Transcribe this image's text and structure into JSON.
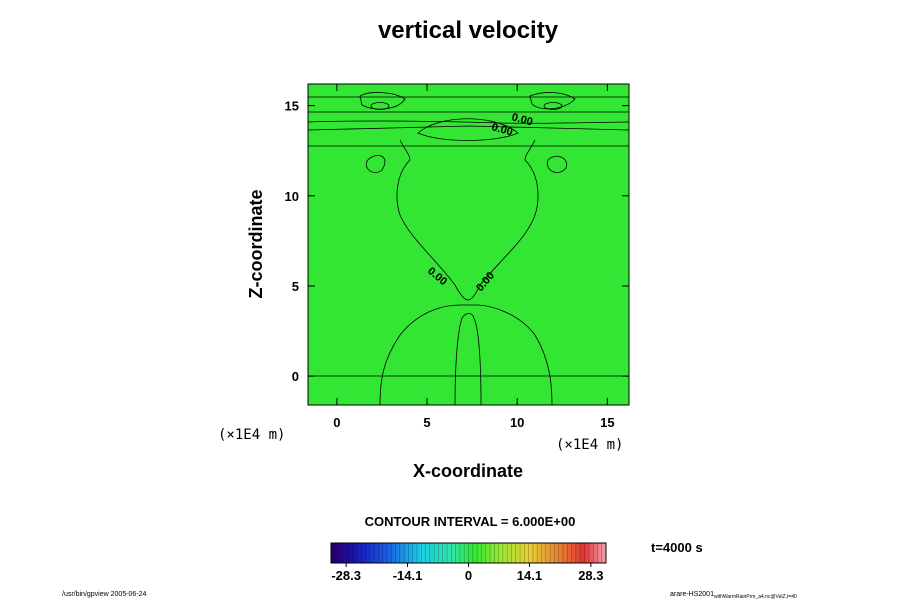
{
  "title": "vertical velocity",
  "chart_data": {
    "type": "heatmap",
    "title": "vertical velocity",
    "xlabel": "X-coordinate",
    "ylabel": "Z-coordinate",
    "x_unit": "(×1E4 m)",
    "y_unit": "(×1E4 m)",
    "xlim": [
      -1.6,
      16.2
    ],
    "ylim": [
      -1.6,
      16.2
    ],
    "xticks": [
      0,
      5,
      10,
      15
    ],
    "yticks": [
      0,
      5,
      10,
      15
    ],
    "grid": false,
    "contour_labels": [
      "0.00",
      "0.00",
      "0.00",
      "0.00"
    ],
    "contour_interval_text": "CONTOUR INTERVAL = 6.000E+00",
    "colorbar": {
      "min": -31.8,
      "max": 31.8,
      "ticks": [
        -28.3,
        -14.1,
        0,
        14.1,
        28.3
      ],
      "tick_labels": [
        "-28.3",
        "-14.1",
        "0",
        "14.1",
        "28.3"
      ]
    },
    "time_label": "t=4000 s",
    "field_color": "#33e633"
  },
  "footer": {
    "left": "/usr/bin/gpview 2005-06-24",
    "right_main": "arare-HS2001",
    "right_sub": "withWarmRainPrm_a4.nc@VelZ,t=40"
  }
}
